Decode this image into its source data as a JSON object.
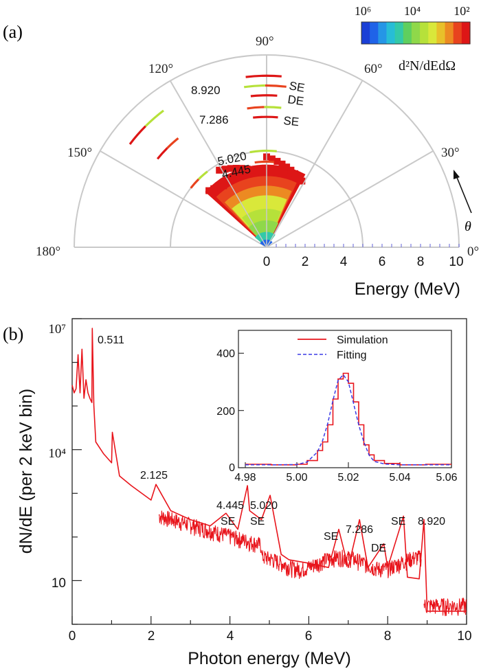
{
  "panel_a": {
    "label": "(a)",
    "angle_labels": [
      "0°",
      "30°",
      "60°",
      "90°",
      "120°",
      "150°",
      "180°"
    ],
    "theta_symbol": "θ",
    "energy_ticks": [
      "0",
      "2",
      "4",
      "6",
      "8",
      "10"
    ],
    "xlabel": "Energy (MeV)",
    "colorbar": {
      "tick_labels": [
        "10⁶",
        "10⁴",
        "10²"
      ],
      "label": "d²N/dEdΩ",
      "colors": [
        "#1a3fd6",
        "#1f63e8",
        "#2596e6",
        "#27bdd6",
        "#33c9a8",
        "#5fcf5e",
        "#8fd84a",
        "#b6e13a",
        "#d9e83a",
        "#e8c02a",
        "#ec8a22",
        "#e8431e",
        "#dd1616"
      ]
    },
    "annotations": [
      "8.920",
      "7.286",
      "5.020",
      "4.445",
      "SE",
      "DE",
      "SE"
    ]
  },
  "panel_b": {
    "label": "(b)",
    "xlabel": "Photon energy (MeV)",
    "ylabel": "dN/dE (per 2 keV bin)",
    "x_ticks": [
      "0",
      "2",
      "4",
      "6",
      "8",
      "10"
    ],
    "y_ticks": [
      "10⁷",
      "10⁴",
      "10"
    ],
    "peak_labels": [
      "0.511",
      "2.125",
      "4.445",
      "5.020",
      "SE",
      "SE",
      "SE",
      "7.286",
      "DE",
      "SE",
      "8.920"
    ],
    "line_color": "#e8141b",
    "inset": {
      "legend": [
        "Simulation",
        "Fitting"
      ],
      "x_ticks": [
        "4.98",
        "5.00",
        "5.02",
        "5.04",
        "5.06"
      ],
      "y_ticks": [
        "0",
        "200",
        "400"
      ]
    }
  },
  "chart_data": [
    {
      "type": "heatmap",
      "title": "",
      "projection": "polar",
      "theta_range_deg": [
        0,
        180
      ],
      "r_label": "Energy (MeV)",
      "r_range": [
        0,
        10
      ],
      "colorscale_range": [
        100,
        1000000
      ],
      "color_label": "d²N/dEdΩ",
      "arcs": [
        {
          "label": "8.920 SE",
          "energy": 8.41,
          "theta_deg": [
            83,
            98
          ]
        },
        {
          "label": "8.920",
          "energy": 8.92,
          "theta_deg": [
            85,
            97
          ]
        },
        {
          "label": "DE",
          "energy": 7.9,
          "theta_deg": [
            86,
            96
          ]
        },
        {
          "label": "7.286",
          "energy": 7.29,
          "theta_deg": [
            84,
            98
          ]
        },
        {
          "label": "SE",
          "energy": 6.78,
          "theta_deg": [
            85,
            96
          ]
        },
        {
          "label": "5.020",
          "energy": 5.02,
          "theta_deg": [
            84,
            100
          ]
        },
        {
          "label": "4.445",
          "energy": 4.45,
          "theta_deg": [
            85,
            98
          ]
        },
        {
          "label": "120-150 group",
          "energy": 8.9,
          "theta_deg": [
            127,
            143
          ]
        },
        {
          "label": "120-150 group",
          "energy": 7.3,
          "theta_deg": [
            129,
            141
          ]
        },
        {
          "label": "120-150 group",
          "energy": 5.0,
          "theta_deg": [
            128,
            142
          ]
        }
      ]
    },
    {
      "type": "line",
      "title": "",
      "xlabel": "Photon energy (MeV)",
      "ylabel": "dN/dE (per 2 keV bin)",
      "xlim": [
        0,
        10
      ],
      "ylim": [
        1,
        10000000
      ],
      "y_scale": "log",
      "series": [
        {
          "x": [
            0.0,
            0.05,
            0.1,
            0.15,
            0.2,
            0.25,
            0.3,
            0.35,
            0.4,
            0.45,
            0.5,
            0.511,
            0.55,
            0.6,
            0.8,
            1.0,
            1.02,
            1.2,
            1.5,
            2.0,
            2.125,
            2.5,
            3.0,
            3.5,
            3.9,
            4.2,
            4.445,
            4.5,
            4.8,
            5.02,
            5.3,
            5.5,
            6.0,
            6.5,
            6.76,
            7.0,
            7.286,
            7.5,
            7.9,
            8.0,
            8.4,
            8.5,
            8.8,
            8.92,
            9.0,
            9.5,
            10.0
          ],
          "values": [
            300000,
            200000,
            250000,
            1500000,
            200000,
            2000000,
            150000,
            400000,
            200000,
            150000,
            120000,
            6000000,
            100000,
            15000,
            8000,
            5000,
            25000,
            2500,
            1500,
            700,
            1600,
            400,
            250,
            180,
            350,
            150,
            1500,
            400,
            250,
            900,
            40,
            30,
            25,
            20,
            150,
            20,
            250,
            20,
            70,
            20,
            300,
            12,
            11,
            250,
            2,
            2,
            2
          ]
        }
      ],
      "inset": {
        "type": "line",
        "xlim": [
          4.98,
          5.06
        ],
        "ylim": [
          0,
          480
        ],
        "series": [
          {
            "name": "Simulation",
            "x": [
              4.98,
              4.99,
              5.0,
              5.004,
              5.008,
              5.01,
              5.012,
              5.014,
              5.016,
              5.018,
              5.02,
              5.022,
              5.024,
              5.026,
              5.028,
              5.03,
              5.034,
              5.04,
              5.05,
              5.06
            ],
            "values": [
              12,
              10,
              12,
              25,
              60,
              90,
              150,
              240,
              310,
              330,
              295,
              230,
              150,
              80,
              45,
              25,
              15,
              10,
              12,
              12
            ]
          },
          {
            "name": "Fitting",
            "x": [
              4.98,
              4.99,
              5.0,
              5.004,
              5.008,
              5.01,
              5.012,
              5.014,
              5.016,
              5.018,
              5.02,
              5.022,
              5.024,
              5.026,
              5.028,
              5.03,
              5.034,
              5.04,
              5.05,
              5.06
            ],
            "values": [
              10,
              10,
              11,
              20,
              55,
              95,
              155,
              235,
              305,
              325,
              300,
              225,
              150,
              90,
              45,
              22,
              13,
              10,
              10,
              10
            ]
          }
        ]
      }
    }
  ]
}
